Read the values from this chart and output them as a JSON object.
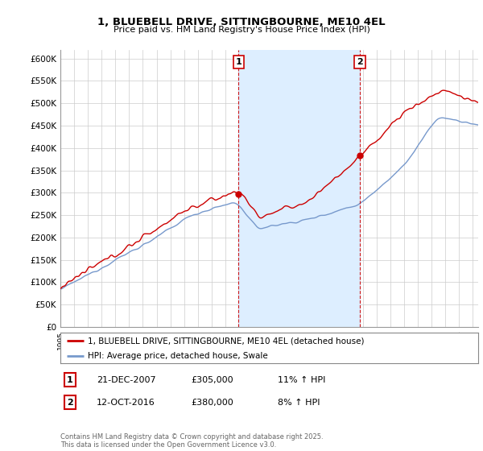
{
  "title": "1, BLUEBELL DRIVE, SITTINGBOURNE, ME10 4EL",
  "subtitle": "Price paid vs. HM Land Registry's House Price Index (HPI)",
  "ylabel_ticks": [
    "£0",
    "£50K",
    "£100K",
    "£150K",
    "£200K",
    "£250K",
    "£300K",
    "£350K",
    "£400K",
    "£450K",
    "£500K",
    "£550K",
    "£600K"
  ],
  "ytick_values": [
    0,
    50000,
    100000,
    150000,
    200000,
    250000,
    300000,
    350000,
    400000,
    450000,
    500000,
    550000,
    600000
  ],
  "xlim_start": 1995.0,
  "xlim_end": 2025.4,
  "ylim_min": 0,
  "ylim_max": 620000,
  "sale1_year": 2007.97,
  "sale1_price": 305000,
  "sale2_year": 2016.79,
  "sale2_price": 380000,
  "legend_line1": "1, BLUEBELL DRIVE, SITTINGBOURNE, ME10 4EL (detached house)",
  "legend_line2": "HPI: Average price, detached house, Swale",
  "table_row1": [
    "1",
    "21-DEC-2007",
    "£305,000",
    "11% ↑ HPI"
  ],
  "table_row2": [
    "2",
    "12-OCT-2016",
    "£380,000",
    "8% ↑ HPI"
  ],
  "footer": "Contains HM Land Registry data © Crown copyright and database right 2025.\nThis data is licensed under the Open Government Licence v3.0.",
  "line_color_red": "#cc0000",
  "line_color_blue": "#7799cc",
  "background_plot": "#ffffff",
  "shade_color": "#ddeeff",
  "grid_color": "#cccccc",
  "annotation_box_color": "#cc0000",
  "dot_color": "#cc0000"
}
